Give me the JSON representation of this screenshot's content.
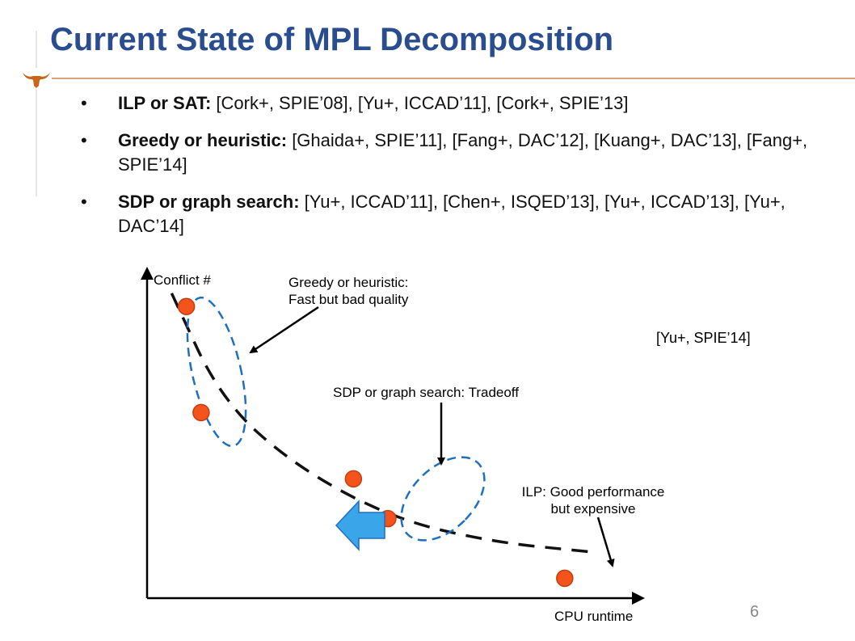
{
  "slide": {
    "title": "Current State of MPL Decomposition",
    "bullets": [
      {
        "bold": "ILP or SAT:",
        "text": " [Cork+, SPIE’08], [Yu+, ICCAD’11], [Cork+, SPIE’13]"
      },
      {
        "bold": "Greedy or heuristic:",
        "text": " [Ghaida+, SPIE’11], [Fang+, DAC’12], [Kuang+, DAC’13], [Fang+, SPIE’14]"
      },
      {
        "bold": "SDP or graph search:",
        "text": " [Yu+, ICCAD’11], [Chen+, ISQED’13], [Yu+, ICCAD’13], [Yu+, DAC’14]"
      }
    ],
    "bullet_symbol": "•",
    "page_number": "6",
    "logo_icon": "longhorn-icon"
  },
  "chart_data": {
    "type": "scatter",
    "xlabel": "CPU runtime",
    "ylabel": "Conflict #",
    "citation": "[Yu+, SPIE’14]",
    "x_ticks": [],
    "y_ticks": [],
    "annotations": [
      {
        "line1": "Greedy or heuristic:",
        "line2": "Fast but bad quality"
      },
      {
        "line1": "SDP or graph search:  Tradeoff",
        "line2": ""
      },
      {
        "line1": "ILP: Good performance",
        "line2": "but expensive"
      }
    ],
    "series": [
      {
        "group": "Greedy or heuristic",
        "points": [
          [
            0.08,
            0.88
          ],
          [
            0.11,
            0.56
          ]
        ]
      },
      {
        "group": "SDP or graph search",
        "points": [
          [
            0.42,
            0.36
          ],
          [
            0.49,
            0.24
          ]
        ]
      },
      {
        "group": "ILP",
        "points": [
          [
            0.85,
            0.06
          ]
        ]
      }
    ],
    "tradeoff_curve": [
      [
        0.05,
        0.92
      ],
      [
        0.15,
        0.6
      ],
      [
        0.3,
        0.4
      ],
      [
        0.5,
        0.24
      ],
      [
        0.7,
        0.17
      ],
      [
        0.9,
        0.14
      ]
    ],
    "colors": {
      "point_fill": "#f4541c",
      "point_stroke": "#ffffff",
      "ellipse": "#1f6fbf",
      "arrow": "#3aa5e8",
      "title": "#2a4d8f"
    }
  }
}
